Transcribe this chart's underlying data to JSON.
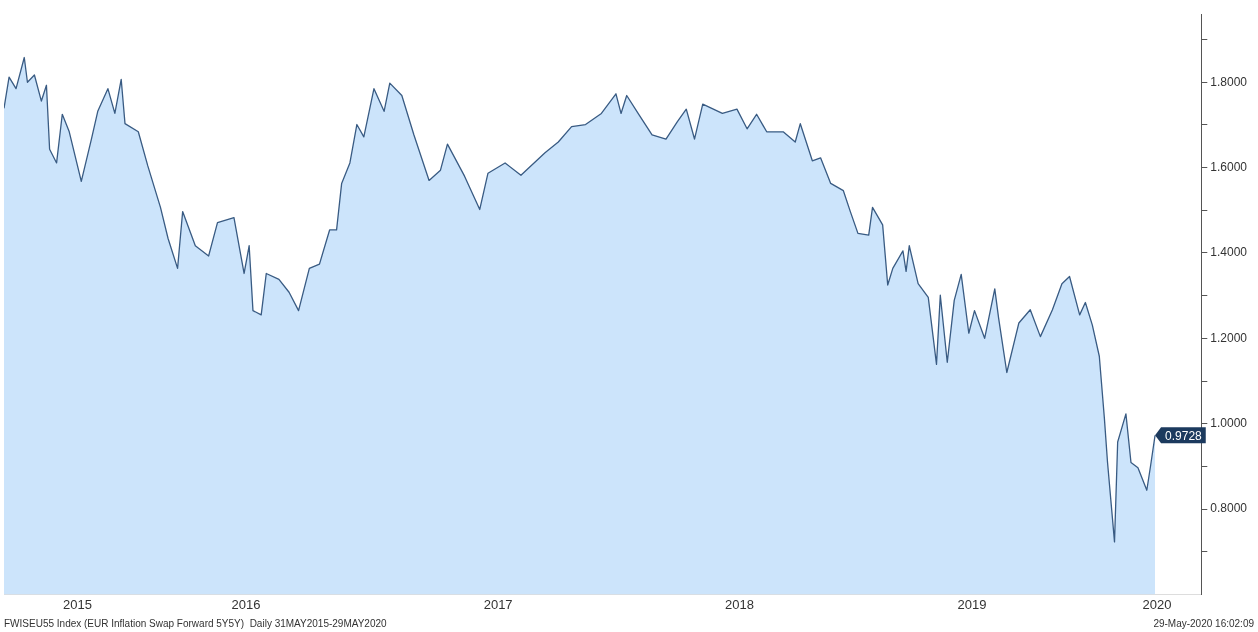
{
  "chart_data": {
    "type": "area",
    "x": [
      "2015-06-08",
      "2015-06-16",
      "2015-06-27",
      "2015-07-10",
      "2015-07-15",
      "2015-07-26",
      "2015-08-06",
      "2015-08-14",
      "2015-08-19",
      "2015-08-30",
      "2015-09-08",
      "2015-09-19",
      "2015-10-08",
      "2015-10-24",
      "2015-11-03",
      "2015-11-19",
      "2015-11-30",
      "2015-12-10",
      "2015-12-16",
      "2016-01-06",
      "2016-01-21",
      "2016-02-10",
      "2016-02-22",
      "2016-03-08",
      "2016-03-16",
      "2016-04-05",
      "2016-04-26",
      "2016-05-10",
      "2016-06-05",
      "2016-06-21",
      "2016-06-29",
      "2016-07-05",
      "2016-07-18",
      "2016-07-26",
      "2016-08-15",
      "2016-08-31",
      "2016-09-15",
      "2016-10-02",
      "2016-10-18",
      "2016-11-03",
      "2016-11-14",
      "2016-11-22",
      "2016-12-05",
      "2016-12-16",
      "2016-12-27",
      "2017-01-12",
      "2017-01-28",
      "2017-02-06",
      "2017-02-25",
      "2017-03-16",
      "2017-04-09",
      "2017-04-27",
      "2017-05-08",
      "2017-06-04",
      "2017-06-28",
      "2017-07-11",
      "2017-08-07",
      "2017-09-01",
      "2017-10-09",
      "2017-10-30",
      "2017-11-20",
      "2017-12-12",
      "2018-01-06",
      "2018-01-29",
      "2018-02-06",
      "2018-02-15",
      "2018-03-06",
      "2018-03-27",
      "2018-04-18",
      "2018-05-06",
      "2018-05-20",
      "2018-06-02",
      "2018-06-15",
      "2018-07-16",
      "2018-08-08",
      "2018-08-24",
      "2018-09-08",
      "2018-09-24",
      "2018-10-20",
      "2018-11-08",
      "2018-11-16",
      "2018-12-05",
      "2018-12-18",
      "2019-01-03",
      "2019-01-23",
      "2019-02-03",
      "2019-02-15",
      "2019-03-04",
      "2019-03-10",
      "2019-03-26",
      "2019-04-03",
      "2019-04-11",
      "2019-04-27",
      "2019-05-02",
      "2019-05-07",
      "2019-05-21",
      "2019-06-06",
      "2019-06-19",
      "2019-06-25",
      "2019-07-06",
      "2019-07-17",
      "2019-07-28",
      "2019-08-09",
      "2019-08-18",
      "2019-09-03",
      "2019-09-19",
      "2019-09-25",
      "2019-10-08",
      "2019-10-27",
      "2019-11-14",
      "2019-11-30",
      "2019-12-19",
      "2020-01-03",
      "2020-01-15",
      "2020-01-31",
      "2020-02-09",
      "2020-02-20",
      "2020-03-02",
      "2020-03-10",
      "2020-03-15",
      "2020-03-26",
      "2020-03-31",
      "2020-04-13",
      "2020-04-21",
      "2020-05-02",
      "2020-05-16",
      "2020-05-22",
      "2020-05-29"
    ],
    "series": [
      {
        "color": "#cce4fb",
        "values": [
          1.739,
          1.812,
          1.785,
          1.858,
          1.8,
          1.817,
          1.756,
          1.793,
          1.643,
          1.611,
          1.725,
          1.684,
          1.568,
          1.667,
          1.732,
          1.785,
          1.727,
          1.807,
          1.703,
          1.684,
          1.604,
          1.507,
          1.434,
          1.364,
          1.497,
          1.417,
          1.393,
          1.471,
          1.483,
          1.352,
          1.417,
          1.265,
          1.255,
          1.352,
          1.338,
          1.308,
          1.265,
          1.364,
          1.374,
          1.454,
          1.454,
          1.563,
          1.611,
          1.701,
          1.672,
          1.785,
          1.732,
          1.798,
          1.769,
          1.677,
          1.57,
          1.594,
          1.655,
          1.58,
          1.502,
          1.587,
          1.611,
          1.582,
          1.635,
          1.66,
          1.696,
          1.701,
          1.727,
          1.773,
          1.727,
          1.769,
          1.725,
          1.677,
          1.667,
          1.708,
          1.737,
          1.667,
          1.749,
          1.727,
          1.737,
          1.691,
          1.725,
          1.684,
          1.684,
          1.66,
          1.703,
          1.616,
          1.623,
          1.563,
          1.546,
          1.497,
          1.446,
          1.442,
          1.507,
          1.466,
          1.325,
          1.364,
          1.405,
          1.357,
          1.417,
          1.328,
          1.296,
          1.139,
          1.301,
          1.144,
          1.289,
          1.35,
          1.212,
          1.265,
          1.2,
          1.316,
          1.248,
          1.12,
          1.236,
          1.267,
          1.204,
          1.267,
          1.328,
          1.345,
          1.255,
          1.284,
          1.231,
          1.158,
          1.013,
          0.909,
          0.723,
          0.957,
          1.023,
          0.909,
          0.897,
          0.844,
          0.902,
          0.9728
        ]
      }
    ],
    "xlim": [
      "2015-06-08",
      "2020-08-10"
    ],
    "xticks": [
      {
        "value": "2015-10-02",
        "label": "2015"
      },
      {
        "value": "2016-06-24",
        "label": "2016"
      },
      {
        "value": "2017-07-27",
        "label": "2017"
      },
      {
        "value": "2018-08-12",
        "label": "2018"
      },
      {
        "value": "2019-08-14",
        "label": "2019"
      },
      {
        "value": "2020-06-01",
        "label": "2020"
      }
    ],
    "ylim": [
      0.6,
      1.96
    ],
    "yticks": [
      {
        "value": 0.7,
        "label": null
      },
      {
        "value": 0.8,
        "label": "0.8000"
      },
      {
        "value": 0.9,
        "label": null
      },
      {
        "value": 1.0,
        "label": "1.0000"
      },
      {
        "value": 1.1,
        "label": null
      },
      {
        "value": 1.2,
        "label": "1.2000"
      },
      {
        "value": 1.3,
        "label": null
      },
      {
        "value": 1.4,
        "label": "1.4000"
      },
      {
        "value": 1.5,
        "label": null
      },
      {
        "value": 1.6,
        "label": "1.6000"
      },
      {
        "value": 1.7,
        "label": null
      },
      {
        "value": 1.8,
        "label": "1.8000"
      },
      {
        "value": 1.9,
        "label": null
      }
    ],
    "annotations": [
      {
        "text": "0.9728",
        "x": "2020-05-29",
        "y": 0.9728
      },
      "FWISEU55 Index (EUR Inflation Swap Forward 5Y5Y)  Daily 31MAY2015-29MAY2020",
      "29-May-2020 16:02:09"
    ],
    "grid": false,
    "legend": false
  }
}
